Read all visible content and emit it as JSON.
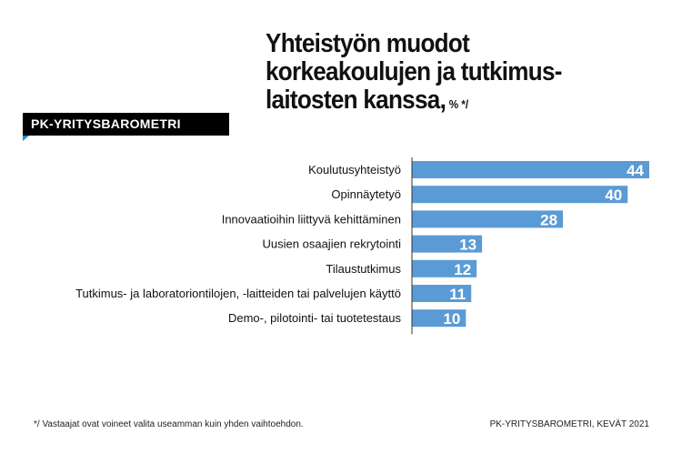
{
  "chart_data": {
    "type": "bar",
    "orientation": "horizontal",
    "title": "Yhteistyön muodot korkeakoulujen ja tutkimus-laitosten kanssa,",
    "title_lines": [
      "Yhteistyön muodot",
      "korkeakoulujen ja tutkimus-",
      "laitosten kanssa,"
    ],
    "title_suffix": "% */",
    "categories": [
      "Koulutusyhteistyö",
      "Opinnäytetyö",
      "Innovaatioihin liittyvä kehittäminen",
      "Uusien osaajien rekrytointi",
      "Tilaustutkimus",
      "Tutkimus- ja laboratoriontilojen, -laitteiden tai  palvelujen käyttö",
      "Demo-, pilotointi- tai tuotetestaus"
    ],
    "values": [
      44,
      40,
      28,
      13,
      12,
      11,
      10
    ],
    "xlim": [
      0,
      44
    ],
    "bar_color": "#5b9bd5",
    "grid": false
  },
  "banner": "PK-YRITYSBAROMETRI",
  "footnote": "*/ Vastaajat ovat voineet valita useamman kuin yhden vaihtoehdon.",
  "source": "PK-YRITYSBAROMETRI, KEVÄT 2021"
}
